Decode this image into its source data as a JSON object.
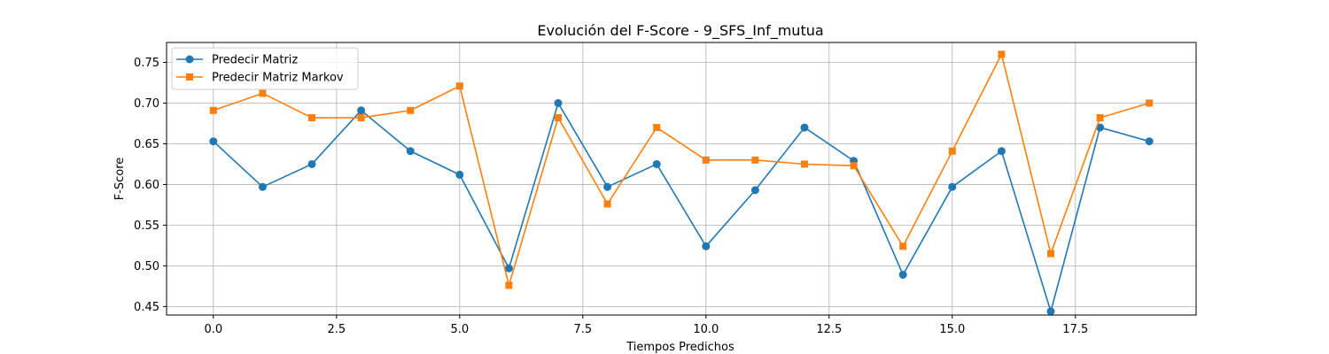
{
  "chart_data": {
    "type": "line",
    "title": "Evolución del F-Score - 9_SFS_Inf_mutua",
    "xlabel": "Tiempos Predichos",
    "ylabel": "F-Score",
    "xlim": [
      -0.95,
      19.95
    ],
    "ylim": [
      0.4395,
      0.7745
    ],
    "x_ticks": [
      0.0,
      2.5,
      5.0,
      7.5,
      10.0,
      12.5,
      15.0,
      17.5
    ],
    "x_tick_labels": [
      "0.0",
      "2.5",
      "5.0",
      "7.5",
      "10.0",
      "12.5",
      "15.0",
      "17.5"
    ],
    "y_ticks": [
      0.45,
      0.5,
      0.55,
      0.6,
      0.65,
      0.7,
      0.75
    ],
    "y_tick_labels": [
      "0.45",
      "0.50",
      "0.55",
      "0.60",
      "0.65",
      "0.70",
      "0.75"
    ],
    "grid": true,
    "legend_position": "top-left",
    "x": [
      0,
      1,
      2,
      3,
      4,
      5,
      6,
      7,
      8,
      9,
      10,
      11,
      12,
      13,
      14,
      15,
      16,
      17,
      18,
      19
    ],
    "series": [
      {
        "name": "Predecir Matriz",
        "color": "#1f77b4",
        "marker": "circle",
        "values": [
          0.653,
          0.597,
          0.625,
          0.691,
          0.641,
          0.612,
          0.497,
          0.7,
          0.597,
          0.625,
          0.524,
          0.593,
          0.67,
          0.629,
          0.489,
          0.597,
          0.641,
          0.444,
          0.67,
          0.653
        ]
      },
      {
        "name": "Predecir Matriz Markov",
        "color": "#ff7f0e",
        "marker": "square",
        "values": [
          0.691,
          0.712,
          0.682,
          0.682,
          0.691,
          0.721,
          0.476,
          0.682,
          0.576,
          0.67,
          0.63,
          0.63,
          0.625,
          0.623,
          0.524,
          0.641,
          0.76,
          0.515,
          0.682,
          0.7
        ]
      }
    ]
  }
}
